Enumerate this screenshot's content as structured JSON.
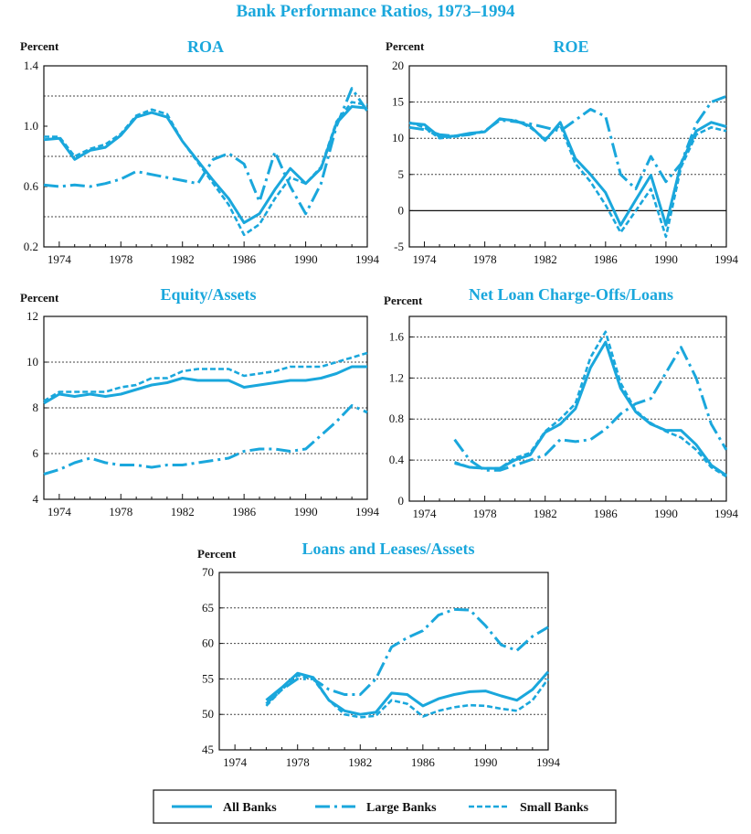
{
  "title": "Bank Performance Ratios, 1973–1994",
  "colors": {
    "series": "#1aa7dc",
    "text": "#111111",
    "grid": "#444444"
  },
  "legend": [
    {
      "key": "all",
      "label": "All Banks",
      "style": "solid"
    },
    {
      "key": "large",
      "label": "Large Banks",
      "style": "dashdot"
    },
    {
      "key": "small",
      "label": "Small Banks",
      "style": "dashed"
    }
  ],
  "chart_data": [
    {
      "type": "line",
      "title": "ROA",
      "ylabel": "Percent",
      "xlim": [
        1973,
        1994
      ],
      "ylim": [
        0.2,
        1.4
      ],
      "yticks": [
        0.2,
        0.6,
        1.0,
        1.4
      ],
      "ytick_labels": [
        "0.2",
        "0.6",
        "1.0",
        "1.4"
      ],
      "ygrid": [
        0.4,
        0.8,
        1.2
      ],
      "zero_line": null,
      "xticks": [
        1974,
        1978,
        1982,
        1986,
        1990,
        1994
      ],
      "series": [
        {
          "key": "all",
          "x": [
            1973,
            1974,
            1975,
            1976,
            1977,
            1978,
            1979,
            1980,
            1981,
            1982,
            1983,
            1984,
            1985,
            1986,
            1987,
            1988,
            1989,
            1990,
            1991,
            1992,
            1993,
            1994
          ],
          "y": [
            0.91,
            0.92,
            0.78,
            0.84,
            0.86,
            0.94,
            1.06,
            1.09,
            1.06,
            0.9,
            0.77,
            0.64,
            0.52,
            0.36,
            0.42,
            0.58,
            0.72,
            0.62,
            0.72,
            1.02,
            1.13,
            1.12
          ]
        },
        {
          "key": "large",
          "x": [
            1973,
            1974,
            1975,
            1976,
            1977,
            1978,
            1979,
            1980,
            1981,
            1982,
            1983,
            1984,
            1985,
            1986,
            1987,
            1988,
            1989,
            1990,
            1991,
            1992,
            1993,
            1994
          ],
          "y": [
            0.61,
            0.6,
            0.61,
            0.6,
            0.62,
            0.65,
            0.7,
            0.68,
            0.66,
            0.64,
            0.62,
            0.78,
            0.82,
            0.75,
            0.5,
            0.83,
            0.6,
            0.42,
            0.62,
            1.0,
            1.25,
            1.1
          ]
        },
        {
          "key": "small",
          "x": [
            1973,
            1974,
            1975,
            1976,
            1977,
            1978,
            1979,
            1980,
            1981,
            1982,
            1983,
            1984,
            1985,
            1986,
            1987,
            1988,
            1989,
            1990,
            1991,
            1992,
            1993,
            1994
          ],
          "y": [
            0.93,
            0.93,
            0.8,
            0.85,
            0.88,
            0.95,
            1.07,
            1.11,
            1.08,
            0.9,
            0.76,
            0.62,
            0.48,
            0.28,
            0.35,
            0.52,
            0.66,
            0.62,
            0.73,
            1.03,
            1.16,
            1.14
          ]
        }
      ]
    },
    {
      "type": "line",
      "title": "ROE",
      "ylabel": "Percent",
      "xlim": [
        1973,
        1994
      ],
      "ylim": [
        -5,
        20
      ],
      "yticks": [
        -5,
        0,
        5,
        10,
        15,
        20
      ],
      "ytick_labels": [
        "-5",
        "0",
        "5",
        "10",
        "15",
        "20"
      ],
      "ygrid": [
        5,
        10,
        15
      ],
      "zero_line": 0,
      "xticks": [
        1974,
        1978,
        1982,
        1986,
        1990,
        1994
      ],
      "series": [
        {
          "key": "all",
          "x": [
            1973,
            1974,
            1975,
            1976,
            1977,
            1978,
            1979,
            1980,
            1981,
            1982,
            1983,
            1984,
            1985,
            1986,
            1987,
            1988,
            1989,
            1990,
            1991,
            1992,
            1993,
            1994
          ],
          "y": [
            12.1,
            11.9,
            10.2,
            10.3,
            10.7,
            10.9,
            12.7,
            12.4,
            11.7,
            9.7,
            12.2,
            7.2,
            5.0,
            2.5,
            -2.0,
            1.5,
            4.9,
            -2.0,
            6.5,
            11.0,
            12.2,
            11.6
          ]
        },
        {
          "key": "large",
          "x": [
            1973,
            1974,
            1975,
            1976,
            1977,
            1978,
            1979,
            1980,
            1981,
            1982,
            1983,
            1984,
            1985,
            1986,
            1987,
            1988,
            1989,
            1990,
            1991,
            1992,
            1993,
            1994
          ],
          "y": [
            11.5,
            11.2,
            10.5,
            10.3,
            10.5,
            11.0,
            12.5,
            12.3,
            12.0,
            11.5,
            11.0,
            12.5,
            14.0,
            13.0,
            5.0,
            3.0,
            7.5,
            4.0,
            6.5,
            12.0,
            15.0,
            15.8
          ]
        },
        {
          "key": "small",
          "x": [
            1973,
            1974,
            1975,
            1976,
            1977,
            1978,
            1979,
            1980,
            1981,
            1982,
            1983,
            1984,
            1985,
            1986,
            1987,
            1988,
            1989,
            1990,
            1991,
            1992,
            1993,
            1994
          ],
          "y": [
            12.2,
            11.5,
            10.0,
            10.2,
            10.6,
            10.9,
            12.6,
            12.5,
            11.5,
            9.9,
            11.8,
            6.5,
            4.0,
            0.8,
            -3.0,
            0.0,
            3.0,
            -3.6,
            6.0,
            10.5,
            11.5,
            11.0
          ]
        }
      ]
    },
    {
      "type": "line",
      "title": "Equity/Assets",
      "ylabel": "Percent",
      "xlim": [
        1973,
        1994
      ],
      "ylim": [
        4,
        12
      ],
      "yticks": [
        4,
        6,
        8,
        10,
        12
      ],
      "ytick_labels": [
        "4",
        "6",
        "8",
        "10",
        "12"
      ],
      "ygrid": [
        6,
        8,
        10
      ],
      "zero_line": null,
      "xticks": [
        1974,
        1978,
        1982,
        1986,
        1990,
        1994
      ],
      "series": [
        {
          "key": "all",
          "x": [
            1973,
            1974,
            1975,
            1976,
            1977,
            1978,
            1979,
            1980,
            1981,
            1982,
            1983,
            1984,
            1985,
            1986,
            1987,
            1988,
            1989,
            1990,
            1991,
            1992,
            1993,
            1994
          ],
          "y": [
            8.2,
            8.6,
            8.5,
            8.6,
            8.5,
            8.6,
            8.8,
            9.0,
            9.1,
            9.3,
            9.2,
            9.2,
            9.2,
            8.9,
            9.0,
            9.1,
            9.2,
            9.2,
            9.3,
            9.5,
            9.8,
            9.8
          ]
        },
        {
          "key": "large",
          "x": [
            1973,
            1974,
            1975,
            1976,
            1977,
            1978,
            1979,
            1980,
            1981,
            1982,
            1983,
            1984,
            1985,
            1986,
            1987,
            1988,
            1989,
            1990,
            1991,
            1992,
            1993,
            1994
          ],
          "y": [
            5.1,
            5.3,
            5.6,
            5.8,
            5.6,
            5.5,
            5.5,
            5.4,
            5.5,
            5.5,
            5.6,
            5.7,
            5.8,
            6.1,
            6.2,
            6.2,
            6.1,
            6.2,
            6.8,
            7.4,
            8.1,
            7.8
          ]
        },
        {
          "key": "small",
          "x": [
            1973,
            1974,
            1975,
            1976,
            1977,
            1978,
            1979,
            1980,
            1981,
            1982,
            1983,
            1984,
            1985,
            1986,
            1987,
            1988,
            1989,
            1990,
            1991,
            1992,
            1993,
            1994
          ],
          "y": [
            8.3,
            8.7,
            8.7,
            8.7,
            8.7,
            8.9,
            9.0,
            9.3,
            9.3,
            9.6,
            9.7,
            9.7,
            9.7,
            9.4,
            9.5,
            9.6,
            9.8,
            9.8,
            9.8,
            10.0,
            10.2,
            10.4
          ]
        }
      ]
    },
    {
      "type": "line",
      "title": "Net Loan Charge-Offs/Loans",
      "ylabel": "Percent",
      "xlim": [
        1973,
        1994
      ],
      "ylim": [
        0,
        1.8
      ],
      "yticks": [
        0,
        0.4,
        0.8,
        1.2,
        1.6
      ],
      "ytick_labels": [
        "0",
        "0.4",
        "0.8",
        "1.2",
        "1.6"
      ],
      "ygrid": [
        0.4,
        0.8,
        1.2,
        1.6
      ],
      "zero_line": null,
      "xticks": [
        1974,
        1978,
        1982,
        1986,
        1990,
        1994
      ],
      "series": [
        {
          "key": "all",
          "x": [
            1976,
            1977,
            1978,
            1979,
            1980,
            1981,
            1982,
            1983,
            1984,
            1985,
            1986,
            1987,
            1988,
            1989,
            1990,
            1991,
            1992,
            1993,
            1994
          ],
          "y": [
            0.37,
            0.33,
            0.32,
            0.32,
            0.4,
            0.45,
            0.67,
            0.75,
            0.9,
            1.3,
            1.55,
            1.1,
            0.87,
            0.75,
            0.69,
            0.69,
            0.55,
            0.35,
            0.25
          ]
        },
        {
          "key": "large",
          "x": [
            1976,
            1977,
            1978,
            1979,
            1980,
            1981,
            1982,
            1983,
            1984,
            1985,
            1986,
            1987,
            1988,
            1989,
            1990,
            1991,
            1992,
            1993,
            1994
          ],
          "y": [
            0.6,
            0.4,
            0.3,
            0.3,
            0.35,
            0.4,
            0.45,
            0.6,
            0.58,
            0.6,
            0.7,
            0.85,
            0.95,
            1.0,
            1.25,
            1.5,
            1.2,
            0.75,
            0.5
          ]
        },
        {
          "key": "small",
          "x": [
            1976,
            1977,
            1978,
            1979,
            1980,
            1981,
            1982,
            1983,
            1984,
            1985,
            1986,
            1987,
            1988,
            1989,
            1990,
            1991,
            1992,
            1993,
            1994
          ],
          "y": [
            0.38,
            0.33,
            0.32,
            0.32,
            0.42,
            0.47,
            0.68,
            0.8,
            0.95,
            1.4,
            1.65,
            1.15,
            0.88,
            0.76,
            0.68,
            0.62,
            0.5,
            0.33,
            0.24
          ]
        }
      ]
    },
    {
      "type": "line",
      "title": "Loans and Leases/Assets",
      "ylabel": "Percent",
      "xlim": [
        1973,
        1994
      ],
      "ylim": [
        45,
        70
      ],
      "yticks": [
        45,
        50,
        55,
        60,
        65,
        70
      ],
      "ytick_labels": [
        "45",
        "50",
        "55",
        "60",
        "65",
        "70"
      ],
      "ygrid": [
        50,
        55,
        60,
        65
      ],
      "zero_line": null,
      "xticks": [
        1974,
        1978,
        1982,
        1986,
        1990,
        1994
      ],
      "series": [
        {
          "key": "all",
          "x": [
            1976,
            1977,
            1978,
            1979,
            1980,
            1981,
            1982,
            1983,
            1984,
            1985,
            1986,
            1987,
            1988,
            1989,
            1990,
            1991,
            1992,
            1993,
            1994
          ],
          "y": [
            52.0,
            53.8,
            55.8,
            55.2,
            52.0,
            50.5,
            50.0,
            50.3,
            53.0,
            52.8,
            51.2,
            52.2,
            52.8,
            53.2,
            53.3,
            52.6,
            52.0,
            53.5,
            56.0
          ]
        },
        {
          "key": "large",
          "x": [
            1976,
            1977,
            1978,
            1979,
            1980,
            1981,
            1982,
            1983,
            1984,
            1985,
            1986,
            1987,
            1988,
            1989,
            1990,
            1991,
            1992,
            1993,
            1994
          ],
          "y": [
            51.5,
            53.5,
            55.0,
            55.0,
            53.5,
            52.8,
            52.8,
            55.0,
            59.5,
            60.8,
            61.8,
            64.0,
            64.8,
            64.7,
            62.5,
            59.8,
            59.0,
            61.0,
            62.3
          ]
        },
        {
          "key": "small",
          "x": [
            1976,
            1977,
            1978,
            1979,
            1980,
            1981,
            1982,
            1983,
            1984,
            1985,
            1986,
            1987,
            1988,
            1989,
            1990,
            1991,
            1992,
            1993,
            1994
          ],
          "y": [
            51.2,
            53.5,
            55.5,
            55.0,
            52.0,
            50.0,
            49.6,
            49.8,
            52.0,
            51.5,
            49.7,
            50.5,
            51.0,
            51.3,
            51.2,
            50.8,
            50.5,
            52.0,
            55.0
          ]
        }
      ]
    }
  ]
}
